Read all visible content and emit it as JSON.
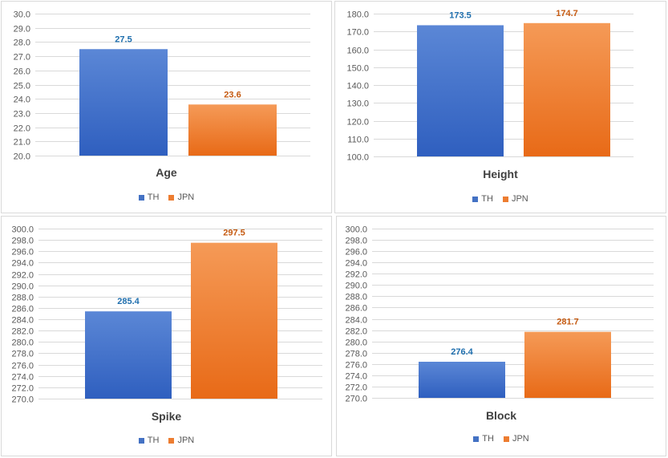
{
  "colors": {
    "th_top": "#5b87d6",
    "th_bottom": "#2f5fbf",
    "jpn_top": "#f59a57",
    "jpn_bottom": "#e86a17",
    "th_label": "#1f6fae",
    "jpn_label": "#c55a11",
    "grid": "#d9d9d9"
  },
  "legend": {
    "th": "TH",
    "jpn": "JPN"
  },
  "chart_data": [
    {
      "type": "bar",
      "title": "Age",
      "categories": [
        "TH",
        "JPN"
      ],
      "values": [
        27.5,
        23.6
      ],
      "value_labels": [
        "27.5",
        "23.6"
      ],
      "ylim": [
        20,
        30
      ],
      "yticks": [
        20,
        21,
        22,
        23,
        24,
        25,
        26,
        27,
        28,
        29,
        30
      ],
      "ytick_labels": [
        "20.0",
        "21.0",
        "22.0",
        "23.0",
        "24.0",
        "25.0",
        "26.0",
        "27.0",
        "28.0",
        "29.0",
        "30.0"
      ],
      "grid": true,
      "legend_position": "bottom"
    },
    {
      "type": "bar",
      "title": "Height",
      "categories": [
        "TH",
        "JPN"
      ],
      "values": [
        173.5,
        174.7
      ],
      "value_labels": [
        "173.5",
        "174.7"
      ],
      "ylim": [
        100,
        180
      ],
      "yticks": [
        100,
        110,
        120,
        130,
        140,
        150,
        160,
        170,
        180
      ],
      "ytick_labels": [
        "100.0",
        "110.0",
        "120.0",
        "130.0",
        "140.0",
        "150.0",
        "160.0",
        "170.0",
        "180.0"
      ],
      "grid": true,
      "legend_position": "bottom"
    },
    {
      "type": "bar",
      "title": "Spike",
      "categories": [
        "TH",
        "JPN"
      ],
      "values": [
        285.4,
        297.5
      ],
      "value_labels": [
        "285.4",
        "297.5"
      ],
      "ylim": [
        270,
        300
      ],
      "yticks": [
        270,
        272,
        274,
        276,
        278,
        280,
        282,
        284,
        286,
        288,
        290,
        292,
        294,
        296,
        298,
        300
      ],
      "ytick_labels": [
        "270.0",
        "272.0",
        "274.0",
        "276.0",
        "278.0",
        "280.0",
        "282.0",
        "284.0",
        "286.0",
        "288.0",
        "290.0",
        "292.0",
        "294.0",
        "296.0",
        "298.0",
        "300.0"
      ],
      "grid": true,
      "legend_position": "bottom"
    },
    {
      "type": "bar",
      "title": "Block",
      "categories": [
        "TH",
        "JPN"
      ],
      "values": [
        276.4,
        281.7
      ],
      "value_labels": [
        "276.4",
        "281.7"
      ],
      "ylim": [
        270,
        300
      ],
      "yticks": [
        270,
        272,
        274,
        276,
        278,
        280,
        282,
        284,
        286,
        288,
        290,
        292,
        294,
        296,
        298,
        300
      ],
      "ytick_labels": [
        "270.0",
        "272.0",
        "274.0",
        "276.0",
        "278.0",
        "280.0",
        "282.0",
        "284.0",
        "286.0",
        "288.0",
        "290.0",
        "292.0",
        "294.0",
        "296.0",
        "298.0",
        "300.0"
      ],
      "grid": true,
      "legend_position": "bottom"
    }
  ]
}
